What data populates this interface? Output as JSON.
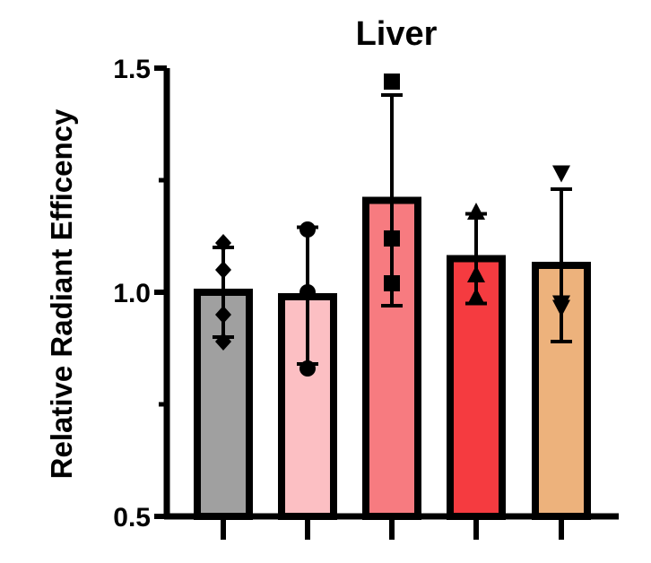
{
  "chart_data": {
    "type": "bar",
    "title": "Liver",
    "xlabel": "",
    "ylabel": "Relative Radiant Efficency",
    "ylim": [
      0.5,
      1.5
    ],
    "yticks": [
      {
        "value": 0.5,
        "label": "0.5"
      },
      {
        "value": 1.0,
        "label": "1.0"
      },
      {
        "value": 1.5,
        "label": "1.5"
      }
    ],
    "yminor_ticks": [
      0.75,
      1.25
    ],
    "grid": false,
    "bars": [
      {
        "value": 1.0,
        "err_low": 0.9,
        "err_high": 1.1,
        "color": "#a0a0a0",
        "marker": "diamond",
        "points": [
          1.11,
          1.05,
          0.95,
          0.89
        ]
      },
      {
        "value": 0.99,
        "err_low": 0.84,
        "err_high": 1.145,
        "color": "#fcbfc3",
        "marker": "circle",
        "points": [
          1.14,
          1.0,
          0.83
        ]
      },
      {
        "value": 1.205,
        "err_low": 0.97,
        "err_high": 1.44,
        "color": "#f77b80",
        "marker": "square",
        "points": [
          1.47,
          1.12,
          1.02
        ]
      },
      {
        "value": 1.075,
        "err_low": 0.975,
        "err_high": 1.175,
        "color": "#f53b40",
        "marker": "triangle",
        "points": [
          1.18,
          1.04,
          0.99
        ]
      },
      {
        "value": 1.06,
        "err_low": 0.89,
        "err_high": 1.23,
        "color": "#edb27c",
        "marker": "triangle-down",
        "points": [
          1.265,
          0.975,
          0.965
        ]
      }
    ]
  }
}
